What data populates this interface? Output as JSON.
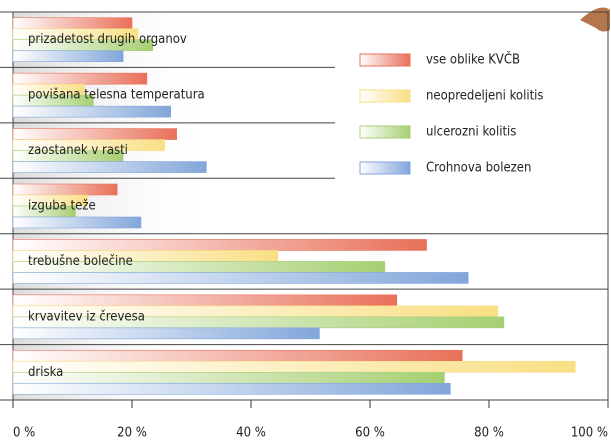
{
  "chart_data": {
    "type": "hbar",
    "categories": [
      "prizadetost drugih organov",
      "povišana telesna temperatura",
      "zaostanek v rasti",
      "izguba teže",
      "trebušne bolečine",
      "krvavitev iz črevesa",
      "driska"
    ],
    "series": [
      {
        "name": "vse oblike KVČB",
        "color": "#e8705a",
        "values": [
          20,
          22.5,
          27.5,
          17.5,
          69.5,
          64.5,
          75.5
        ]
      },
      {
        "name": "neopredeljeni kolitis",
        "color": "#f9df84",
        "values": [
          21,
          12,
          25.5,
          12.5,
          44.5,
          81.5,
          94.5
        ]
      },
      {
        "name": "ulcerozni kolitis",
        "color": "#a6cf72",
        "values": [
          23.5,
          13.5,
          18.5,
          10.5,
          62.5,
          82.5,
          72.5
        ]
      },
      {
        "name": "Crohnova bolezen",
        "color": "#82a6da",
        "values": [
          18.5,
          26.5,
          32.5,
          21.5,
          76.5,
          51.5,
          73.5
        ]
      }
    ],
    "xlim": [
      0,
      100
    ],
    "xticks": [
      {
        "value": 0,
        "label": "0 %"
      },
      {
        "value": 20,
        "label": "20 %"
      },
      {
        "value": 40,
        "label": "40 %"
      },
      {
        "value": 60,
        "label": "60 %"
      },
      {
        "value": 80,
        "label": "80 %"
      },
      {
        "value": 100,
        "label": "100 %"
      }
    ],
    "legend": "upper right"
  }
}
